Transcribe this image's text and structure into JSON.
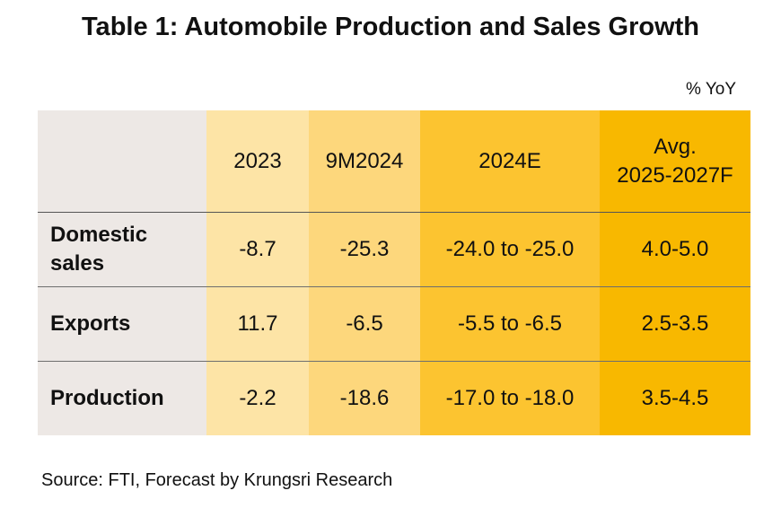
{
  "title": "Table 1: Automobile Production and Sales Growth",
  "unit": "% YoY",
  "colors": {
    "label_column": "#ede8e5",
    "col_2023": "#fde4a6",
    "col_9m2024": "#fdd77c",
    "col_2024e": "#fcc430",
    "col_avg": "#f8b800"
  },
  "table": {
    "columns": [
      "2023",
      "9M2024",
      "2024E",
      "Avg.\n2025-2027F"
    ],
    "columns_display": {
      "c0": "2023",
      "c1": "9M2024",
      "c2": "2024E",
      "c3_line1": "Avg.",
      "c3_line2": "2025-2027F"
    },
    "rows": [
      {
        "label": "Domestic sales",
        "label_line1": "Domestic",
        "label_line2": "sales",
        "values": [
          "-8.7",
          "-25.3",
          "-24.0 to -25.0",
          "4.0-5.0"
        ]
      },
      {
        "label": "Exports",
        "values": [
          "11.7",
          "-6.5",
          "-5.5 to -6.5",
          "2.5-3.5"
        ]
      },
      {
        "label": "Production",
        "values": [
          "-2.2",
          "-18.6",
          "-17.0 to -18.0",
          "3.5-4.5"
        ]
      }
    ]
  },
  "source": "Source: FTI, Forecast by Krungsri Research"
}
